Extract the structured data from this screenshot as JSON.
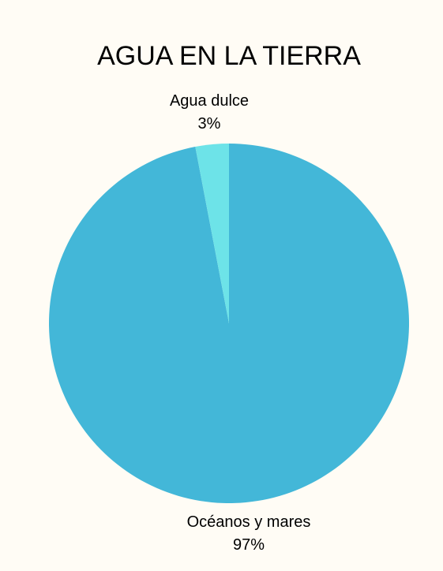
{
  "chart_data": {
    "type": "pie",
    "title": "AGUA EN LA TIERRA",
    "slices": [
      {
        "name": "Océanos y mares",
        "value": 97,
        "label": "97%",
        "color": "#43b7d8"
      },
      {
        "name": "Agua dulce",
        "value": 3,
        "label": "3%",
        "color": "#6de3e8"
      }
    ],
    "start_angle": "12 o'clock",
    "direction": "clockwise",
    "legend": "none",
    "background": "#fffcf5"
  }
}
